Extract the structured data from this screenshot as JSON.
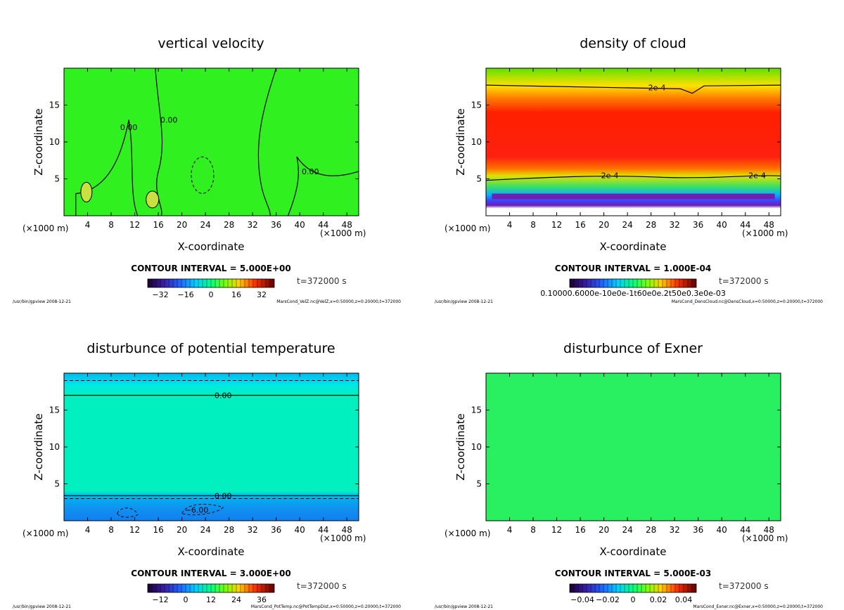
{
  "panels": [
    {
      "title": "vertical velocity",
      "xlabel": "X-coordinate",
      "ylabel": "Z-coordinate",
      "x_unit": "(×1000 m)",
      "contour_interval": "CONTOUR INTERVAL = 5.000E+00",
      "time": "t=372000 s",
      "footer_left": "/usr/bin/gpview   2008-12-21",
      "footer_right": "MarsCond_VelZ.nc@VelZ,x=0:50000,z=0:20000,t=372000",
      "colorbar_ticks": [
        "−32",
        "−16",
        "0",
        "16",
        "32"
      ],
      "contour_labels": [
        "0.00",
        "0.00",
        "0.00"
      ],
      "field": "velz"
    },
    {
      "title": "density of cloud",
      "xlabel": "X-coordinate",
      "ylabel": "Z-coordinate",
      "x_unit": "(×1000 m)",
      "contour_interval": "CONTOUR INTERVAL = 1.000E-04",
      "time": "t=372000 s",
      "footer_left": "/usr/bin/gpview   2008-12-21",
      "footer_right": "MarsCond_DensCloud.nc@DensCloud,x=0:50000,z=0:20000,t=372000",
      "colorbar_ticks": [
        "0.10000.6000e-10e0e-1t60e0e.2t50e0.3e0e-03"
      ],
      "contour_labels": [
        "2e-4",
        "2e-4",
        "2e-4"
      ],
      "field": "cloud"
    },
    {
      "title": "disturbunce of potential temperature",
      "xlabel": "X-coordinate",
      "ylabel": "Z-coordinate",
      "x_unit": "(×1000 m)",
      "contour_interval": "CONTOUR INTERVAL = 3.000E+00",
      "time": "t=372000 s",
      "footer_left": "/usr/bin/gpview   2008-12-21",
      "footer_right": "MarsCond_PotTemp.nc@PotTempDist,x=0:50000,z=0:20000,t=372000",
      "colorbar_ticks": [
        "−12",
        "0",
        "12",
        "24",
        "36"
      ],
      "contour_labels": [
        "0.00",
        "0.00",
        "−6.00"
      ],
      "field": "pt"
    },
    {
      "title": "disturbunce of Exner",
      "xlabel": "X-coordinate",
      "ylabel": "Z-coordinate",
      "x_unit": "(×1000 m)",
      "contour_interval": "CONTOUR INTERVAL = 5.000E-03",
      "time": "t=372000 s",
      "footer_left": "/usr/bin/gpview   2008-12-21",
      "footer_right": "MarsCond_Exner.nc@Exner,x=0:50000,z=0:20000,t=372000",
      "colorbar_ticks": [
        "−0.04",
        "−0.02",
        "0",
        "0.02",
        "0.04"
      ],
      "contour_labels": [],
      "field": "exner"
    }
  ],
  "chart_data": [
    {
      "type": "heatmap",
      "title": "vertical velocity",
      "xlabel": "X-coordinate",
      "ylabel": "Z-coordinate",
      "xlim": [
        0,
        50
      ],
      "ylim": [
        0,
        20
      ],
      "xticks": [
        4,
        8,
        12,
        16,
        20,
        24,
        28,
        32,
        36,
        40,
        44,
        48
      ],
      "yticks": [
        5,
        10,
        15
      ],
      "colorbar_ticks": [
        -32,
        -16,
        0,
        16,
        32
      ],
      "contour_interval": 5.0
    },
    {
      "type": "heatmap",
      "title": "density of cloud",
      "xlabel": "X-coordinate",
      "ylabel": "Z-coordinate",
      "xlim": [
        0,
        50
      ],
      "ylim": [
        0,
        20
      ],
      "xticks": [
        4,
        8,
        12,
        16,
        20,
        24,
        28,
        32,
        36,
        40,
        44,
        48
      ],
      "yticks": [
        5,
        10,
        15
      ],
      "contour_interval": 0.0001
    },
    {
      "type": "heatmap",
      "title": "disturbunce of potential temperature",
      "xlabel": "X-coordinate",
      "ylabel": "Z-coordinate",
      "xlim": [
        0,
        50
      ],
      "ylim": [
        0,
        20
      ],
      "xticks": [
        4,
        8,
        12,
        16,
        20,
        24,
        28,
        32,
        36,
        40,
        44,
        48
      ],
      "yticks": [
        5,
        10,
        15
      ],
      "colorbar_ticks": [
        -12,
        0,
        12,
        24,
        36
      ],
      "contour_interval": 3.0
    },
    {
      "type": "heatmap",
      "title": "disturbunce of Exner",
      "xlabel": "X-coordinate",
      "ylabel": "Z-coordinate",
      "xlim": [
        0,
        50
      ],
      "ylim": [
        0,
        20
      ],
      "xticks": [
        4,
        8,
        12,
        16,
        20,
        24,
        28,
        32,
        36,
        40,
        44,
        48
      ],
      "yticks": [
        5,
        10,
        15
      ],
      "colorbar_ticks": [
        -0.04,
        -0.02,
        0,
        0.02,
        0.04
      ],
      "contour_interval": 0.005
    }
  ]
}
